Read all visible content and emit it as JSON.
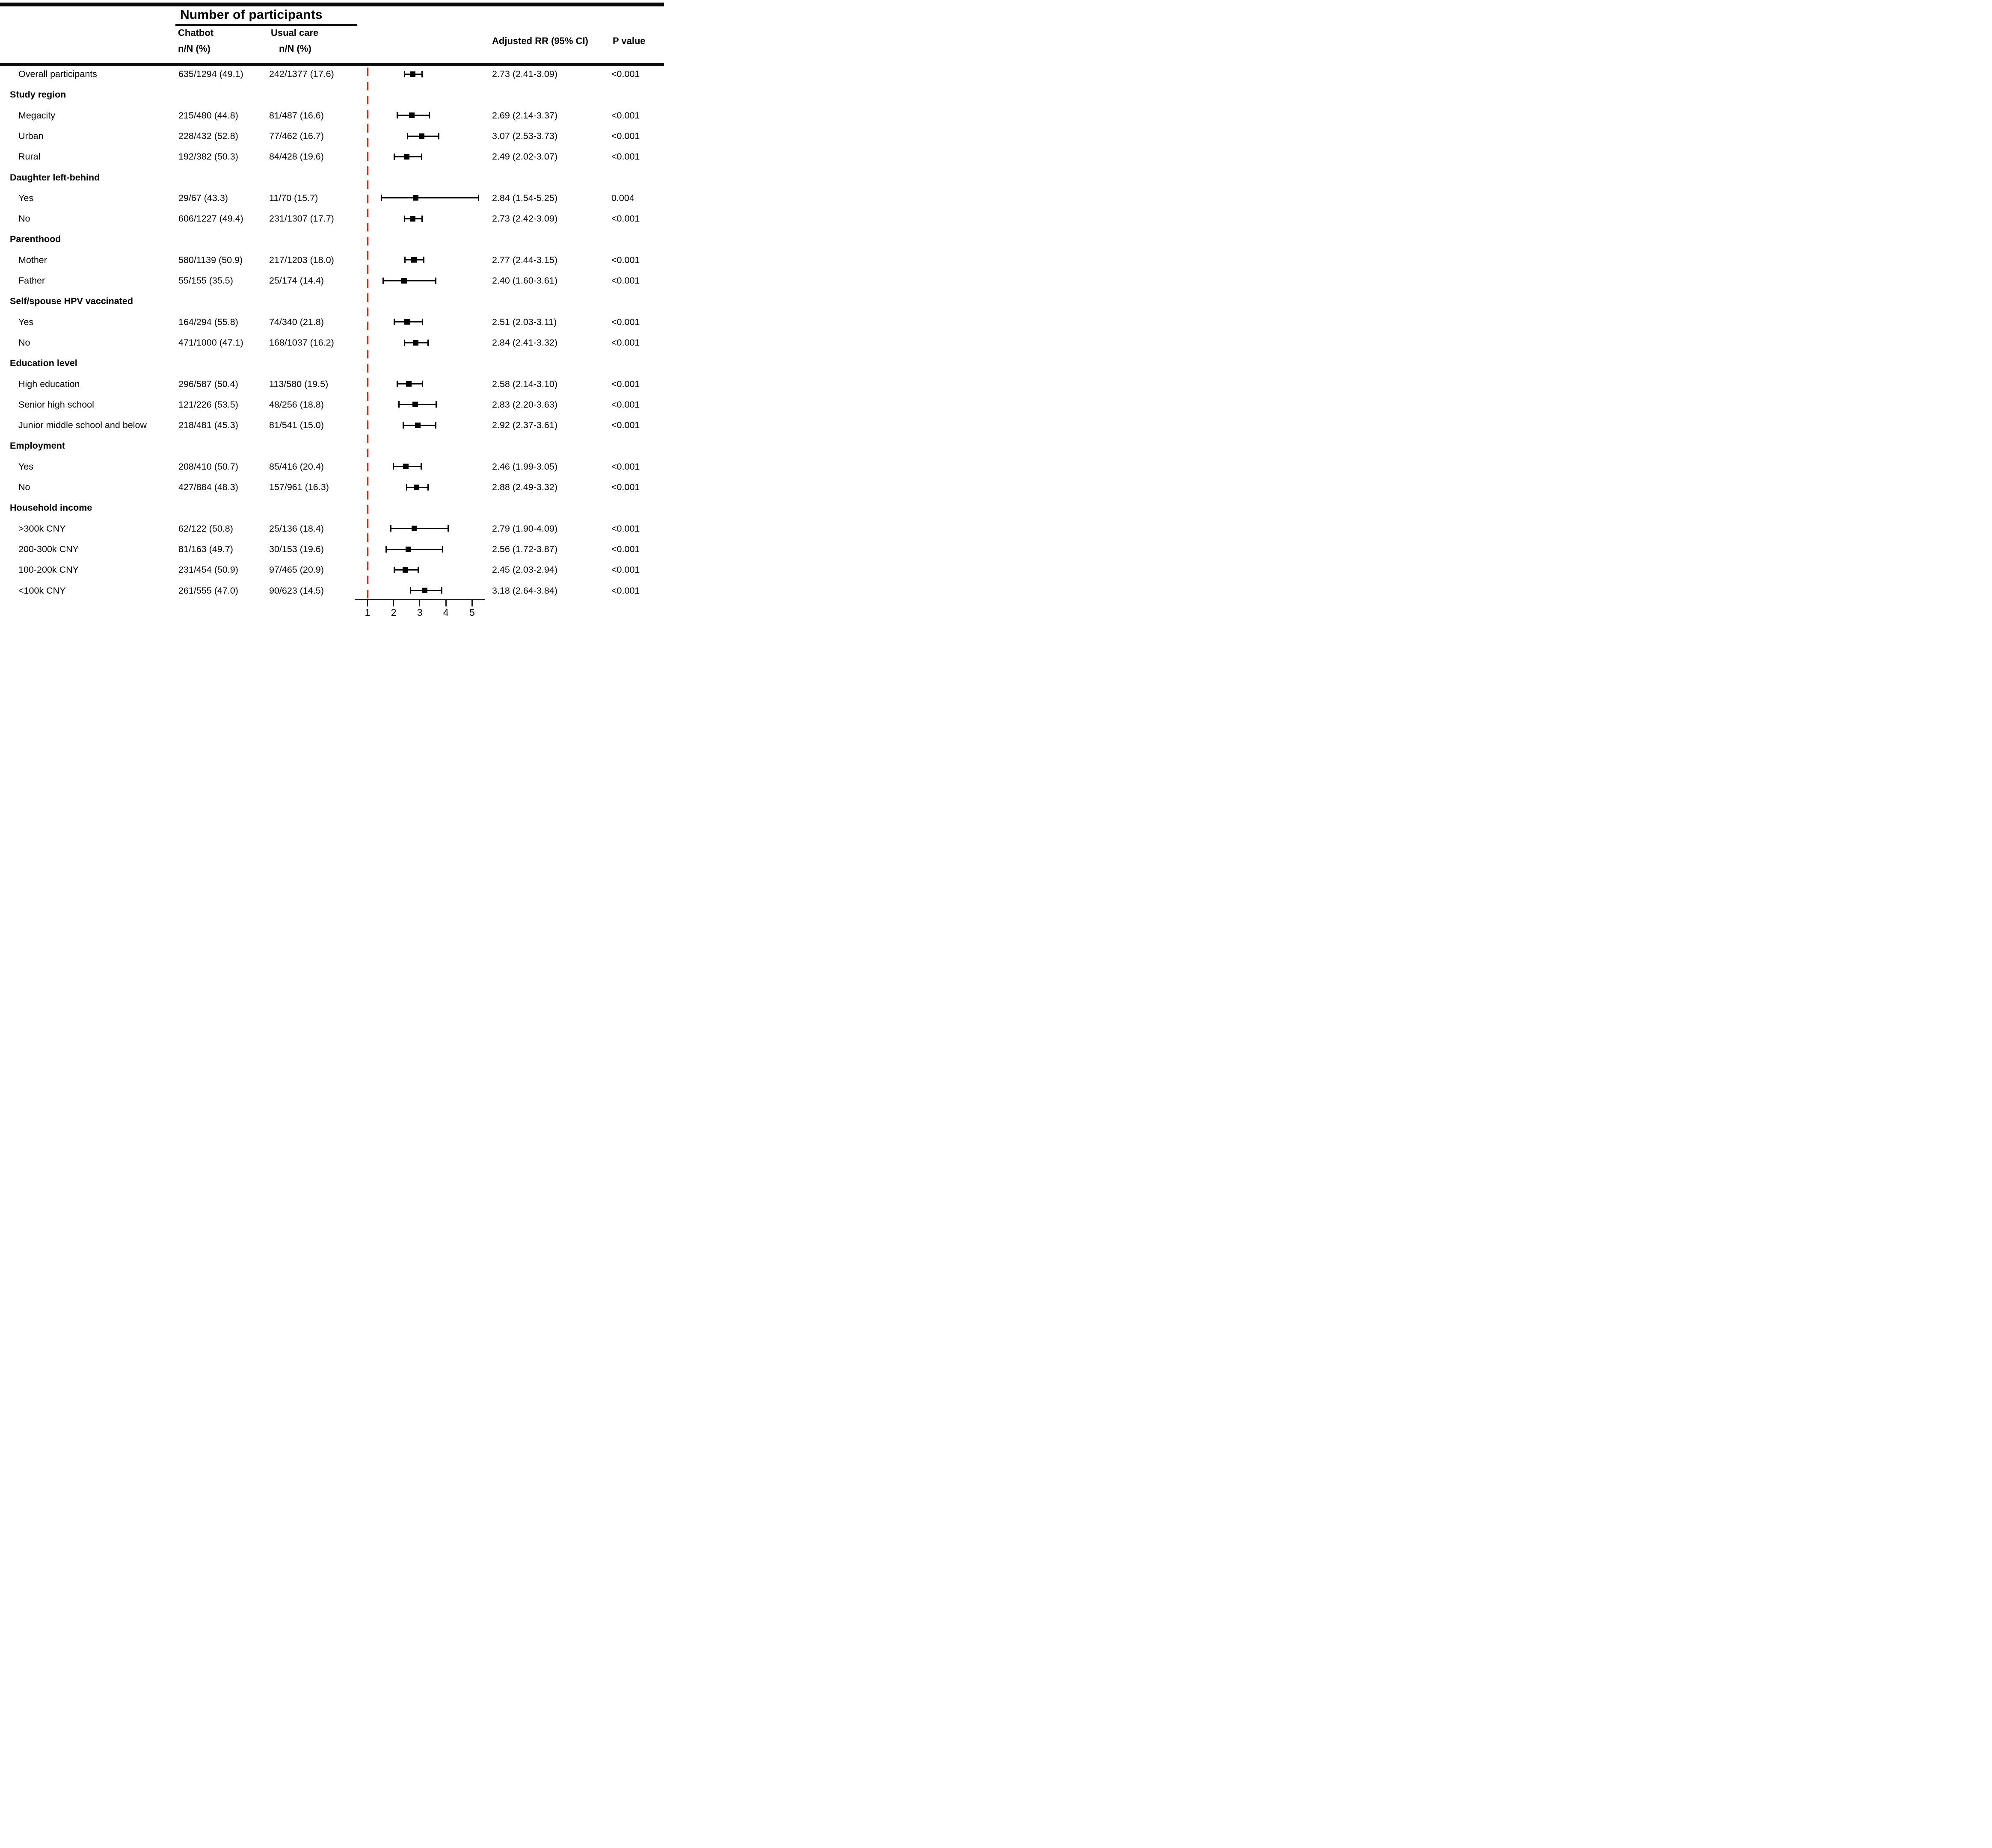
{
  "header": {
    "group_title": "Number of participants",
    "chatbot_line1": "Chatbot",
    "chatbot_line2": "n/N (%)",
    "usual_line1": "Usual care",
    "usual_line2": "n/N (%)",
    "rr_col": "Adjusted RR (95% CI)",
    "p_col": "P value"
  },
  "colors": {
    "reference_line": "#f8150d",
    "marker": "#000000",
    "text": "#000000",
    "rule": "#0b0b0b"
  },
  "axis": {
    "ticks": [
      "1",
      "2",
      "3",
      "4",
      "5"
    ],
    "tick_values": [
      1,
      2,
      3,
      4,
      5
    ],
    "range_min": 0.5,
    "range_max": 5.55,
    "reference_value": 1
  },
  "rows": [
    {
      "type": "data",
      "label": "Overall participants",
      "chatbot": "635/1294 (49.1)",
      "usual": "242/1377 (17.6)",
      "rr_text": "2.73 (2.41-3.09)",
      "p": "<0.001",
      "rr": 2.73,
      "lo": 2.41,
      "hi": 3.09
    },
    {
      "type": "section",
      "label": "Study region"
    },
    {
      "type": "data",
      "label": "Megacity",
      "chatbot": "215/480 (44.8)",
      "usual": "81/487 (16.6)",
      "rr_text": "2.69 (2.14-3.37)",
      "p": "<0.001",
      "rr": 2.69,
      "lo": 2.14,
      "hi": 3.37
    },
    {
      "type": "data",
      "label": "Urban",
      "chatbot": "228/432 (52.8)",
      "usual": "77/462 (16.7)",
      "rr_text": "3.07 (2.53-3.73)",
      "p": "<0.001",
      "rr": 3.07,
      "lo": 2.53,
      "hi": 3.73
    },
    {
      "type": "data",
      "label": "Rural",
      "chatbot": "192/382 (50.3)",
      "usual": "84/428 (19.6)",
      "rr_text": "2.49 (2.02-3.07)",
      "p": "<0.001",
      "rr": 2.49,
      "lo": 2.02,
      "hi": 3.07
    },
    {
      "type": "section",
      "label": "Daughter left-behind"
    },
    {
      "type": "data",
      "label": "Yes",
      "chatbot": "29/67 (43.3)",
      "usual": "11/70 (15.7)",
      "rr_text": "2.84 (1.54-5.25)",
      "p": "0.004",
      "rr": 2.84,
      "lo": 1.54,
      "hi": 5.25
    },
    {
      "type": "data",
      "label": "No",
      "chatbot": "606/1227 (49.4)",
      "usual": "231/1307 (17.7)",
      "rr_text": "2.73 (2.42-3.09)",
      "p": "<0.001",
      "rr": 2.73,
      "lo": 2.42,
      "hi": 3.09
    },
    {
      "type": "section",
      "label": "Parenthood"
    },
    {
      "type": "data",
      "label": "Mother",
      "chatbot": "580/1139 (50.9)",
      "usual": "217/1203 (18.0)",
      "rr_text": "2.77 (2.44-3.15)",
      "p": "<0.001",
      "rr": 2.77,
      "lo": 2.44,
      "hi": 3.15
    },
    {
      "type": "data",
      "label": "Father",
      "chatbot": "55/155 (35.5)",
      "usual": "25/174 (14.4)",
      "rr_text": "2.40 (1.60-3.61)",
      "p": "<0.001",
      "rr": 2.4,
      "lo": 1.6,
      "hi": 3.61
    },
    {
      "type": "section",
      "label": "Self/spouse HPV vaccinated"
    },
    {
      "type": "data",
      "label": "Yes",
      "chatbot": "164/294 (55.8)",
      "usual": "74/340 (21.8)",
      "rr_text": "2.51 (2.03-3.11)",
      "p": "<0.001",
      "rr": 2.51,
      "lo": 2.03,
      "hi": 3.11
    },
    {
      "type": "data",
      "label": "No",
      "chatbot": "471/1000 (47.1)",
      "usual": "168/1037 (16.2)",
      "rr_text": "2.84 (2.41-3.32)",
      "p": "<0.001",
      "rr": 2.84,
      "lo": 2.41,
      "hi": 3.32
    },
    {
      "type": "section",
      "label": "Education level"
    },
    {
      "type": "data",
      "label": "High education",
      "chatbot": "296/587 (50.4)",
      "usual": "113/580 (19.5)",
      "rr_text": "2.58 (2.14-3.10)",
      "p": "<0.001",
      "rr": 2.58,
      "lo": 2.14,
      "hi": 3.1
    },
    {
      "type": "data",
      "label": "Senior high school",
      "chatbot": "121/226 (53.5)",
      "usual": "48/256 (18.8)",
      "rr_text": "2.83 (2.20-3.63)",
      "p": "<0.001",
      "rr": 2.83,
      "lo": 2.2,
      "hi": 3.63
    },
    {
      "type": "data",
      "label": "Junior middle school and below",
      "chatbot": "218/481 (45.3)",
      "usual": "81/541 (15.0)",
      "rr_text": "2.92 (2.37-3.61)",
      "p": "<0.001",
      "rr": 2.92,
      "lo": 2.37,
      "hi": 3.61
    },
    {
      "type": "section",
      "label": "Employment"
    },
    {
      "type": "data",
      "label": "Yes",
      "chatbot": "208/410 (50.7)",
      "usual": "85/416 (20.4)",
      "rr_text": "2.46 (1.99-3.05)",
      "p": "<0.001",
      "rr": 2.46,
      "lo": 1.99,
      "hi": 3.05
    },
    {
      "type": "data",
      "label": "No",
      "chatbot": "427/884 (48.3)",
      "usual": "157/961 (16.3)",
      "rr_text": "2.88 (2.49-3.32)",
      "p": "<0.001",
      "rr": 2.88,
      "lo": 2.49,
      "hi": 3.32
    },
    {
      "type": "section",
      "label": "Household income"
    },
    {
      "type": "data",
      "label": ">300k CNY",
      "chatbot": "62/122 (50.8)",
      "usual": "25/136 (18.4)",
      "rr_text": "2.79 (1.90-4.09)",
      "p": "<0.001",
      "rr": 2.79,
      "lo": 1.9,
      "hi": 4.09
    },
    {
      "type": "data",
      "label": "200-300k CNY",
      "chatbot": "81/163 (49.7)",
      "usual": "30/153 (19.6)",
      "rr_text": "2.56 (1.72-3.87)",
      "p": "<0.001",
      "rr": 2.56,
      "lo": 1.72,
      "hi": 3.87
    },
    {
      "type": "data",
      "label": "100-200k CNY",
      "chatbot": "231/454 (50.9)",
      "usual": "97/465 (20.9)",
      "rr_text": "2.45 (2.03-2.94)",
      "p": "<0.001",
      "rr": 2.45,
      "lo": 2.03,
      "hi": 2.94
    },
    {
      "type": "data",
      "label": "<100k CNY",
      "chatbot": "261/555 (47.0)",
      "usual": "90/623 (14.5)",
      "rr_text": "3.18 (2.64-3.84)",
      "p": "<0.001",
      "rr": 3.18,
      "lo": 2.64,
      "hi": 3.84
    }
  ],
  "chart_data": {
    "type": "scatter",
    "subtype": "forest-plot",
    "title": "Number of participants",
    "xlabel": "Adjusted RR (95% CI)",
    "x_ticks": [
      1,
      2,
      3,
      4,
      5
    ],
    "x_range": [
      0.5,
      5.55
    ],
    "reference_line_x": 1,
    "legend_position": "none",
    "grid": false,
    "points": [
      {
        "label": "Overall participants",
        "group": "Overall",
        "rr": 2.73,
        "ci_low": 2.41,
        "ci_high": 3.09,
        "p": "<0.001"
      },
      {
        "label": "Megacity",
        "group": "Study region",
        "rr": 2.69,
        "ci_low": 2.14,
        "ci_high": 3.37,
        "p": "<0.001"
      },
      {
        "label": "Urban",
        "group": "Study region",
        "rr": 3.07,
        "ci_low": 2.53,
        "ci_high": 3.73,
        "p": "<0.001"
      },
      {
        "label": "Rural",
        "group": "Study region",
        "rr": 2.49,
        "ci_low": 2.02,
        "ci_high": 3.07,
        "p": "<0.001"
      },
      {
        "label": "Yes",
        "group": "Daughter left-behind",
        "rr": 2.84,
        "ci_low": 1.54,
        "ci_high": 5.25,
        "p": "0.004"
      },
      {
        "label": "No",
        "group": "Daughter left-behind",
        "rr": 2.73,
        "ci_low": 2.42,
        "ci_high": 3.09,
        "p": "<0.001"
      },
      {
        "label": "Mother",
        "group": "Parenthood",
        "rr": 2.77,
        "ci_low": 2.44,
        "ci_high": 3.15,
        "p": "<0.001"
      },
      {
        "label": "Father",
        "group": "Parenthood",
        "rr": 2.4,
        "ci_low": 1.6,
        "ci_high": 3.61,
        "p": "<0.001"
      },
      {
        "label": "Yes",
        "group": "Self/spouse HPV vaccinated",
        "rr": 2.51,
        "ci_low": 2.03,
        "ci_high": 3.11,
        "p": "<0.001"
      },
      {
        "label": "No",
        "group": "Self/spouse HPV vaccinated",
        "rr": 2.84,
        "ci_low": 2.41,
        "ci_high": 3.32,
        "p": "<0.001"
      },
      {
        "label": "High education",
        "group": "Education level",
        "rr": 2.58,
        "ci_low": 2.14,
        "ci_high": 3.1,
        "p": "<0.001"
      },
      {
        "label": "Senior high school",
        "group": "Education level",
        "rr": 2.83,
        "ci_low": 2.2,
        "ci_high": 3.63,
        "p": "<0.001"
      },
      {
        "label": "Junior middle school and below",
        "group": "Education level",
        "rr": 2.92,
        "ci_low": 2.37,
        "ci_high": 3.61,
        "p": "<0.001"
      },
      {
        "label": "Yes",
        "group": "Employment",
        "rr": 2.46,
        "ci_low": 1.99,
        "ci_high": 3.05,
        "p": "<0.001"
      },
      {
        "label": "No",
        "group": "Employment",
        "rr": 2.88,
        "ci_low": 2.49,
        "ci_high": 3.32,
        "p": "<0.001"
      },
      {
        "label": ">300k CNY",
        "group": "Household income",
        "rr": 2.79,
        "ci_low": 1.9,
        "ci_high": 4.09,
        "p": "<0.001"
      },
      {
        "label": "200-300k CNY",
        "group": "Household income",
        "rr": 2.56,
        "ci_low": 1.72,
        "ci_high": 3.87,
        "p": "<0.001"
      },
      {
        "label": "100-200k CNY",
        "group": "Household income",
        "rr": 2.45,
        "ci_low": 2.03,
        "ci_high": 2.94,
        "p": "<0.001"
      },
      {
        "label": "<100k CNY",
        "group": "Household income",
        "rr": 3.18,
        "ci_low": 2.64,
        "ci_high": 3.84,
        "p": "<0.001"
      }
    ]
  }
}
